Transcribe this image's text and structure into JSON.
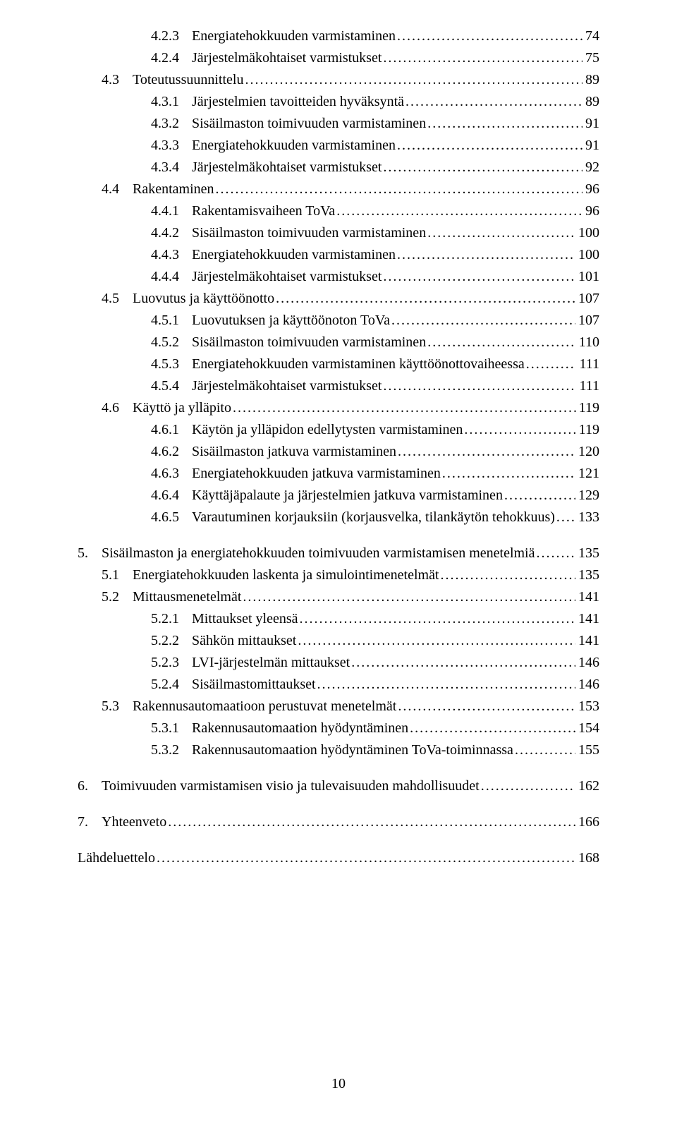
{
  "toc": {
    "entries": [
      {
        "level": 2,
        "num": "4.2.3",
        "title": "Energiatehokkuuden varmistaminen",
        "page": "74"
      },
      {
        "level": 2,
        "num": "4.2.4",
        "title": "Järjestelmäkohtaiset varmistukset",
        "page": "75"
      },
      {
        "level": 1,
        "num": "4.3",
        "title": "Toteutussuunnittelu",
        "page": "89"
      },
      {
        "level": 2,
        "num": "4.3.1",
        "title": "Järjestelmien tavoitteiden hyväksyntä",
        "page": "89"
      },
      {
        "level": 2,
        "num": "4.3.2",
        "title": "Sisäilmaston toimivuuden varmistaminen",
        "page": "91"
      },
      {
        "level": 2,
        "num": "4.3.3",
        "title": "Energiatehokkuuden varmistaminen",
        "page": "91"
      },
      {
        "level": 2,
        "num": "4.3.4",
        "title": "Järjestelmäkohtaiset varmistukset",
        "page": "92"
      },
      {
        "level": 1,
        "num": "4.4",
        "title": "Rakentaminen",
        "page": "96"
      },
      {
        "level": 2,
        "num": "4.4.1",
        "title": "Rakentamisvaiheen ToVa",
        "page": "96"
      },
      {
        "level": 2,
        "num": "4.4.2",
        "title": "Sisäilmaston toimivuuden varmistaminen",
        "page": "100"
      },
      {
        "level": 2,
        "num": "4.4.3",
        "title": "Energiatehokkuuden varmistaminen",
        "page": "100"
      },
      {
        "level": 2,
        "num": "4.4.4",
        "title": "Järjestelmäkohtaiset varmistukset",
        "page": "101"
      },
      {
        "level": 1,
        "num": "4.5",
        "title": "Luovutus ja käyttöönotto",
        "page": "107"
      },
      {
        "level": 2,
        "num": "4.5.1",
        "title": "Luovutuksen ja käyttöönoton ToVa",
        "page": "107"
      },
      {
        "level": 2,
        "num": "4.5.2",
        "title": "Sisäilmaston toimivuuden varmistaminen",
        "page": "110"
      },
      {
        "level": 2,
        "num": "4.5.3",
        "title": "Energiatehokkuuden varmistaminen käyttöönottovaiheessa",
        "page": "111"
      },
      {
        "level": 2,
        "num": "4.5.4",
        "title": "Järjestelmäkohtaiset varmistukset",
        "page": "111"
      },
      {
        "level": 1,
        "num": "4.6",
        "title": "Käyttö ja ylläpito",
        "page": "119"
      },
      {
        "level": 2,
        "num": "4.6.1",
        "title": "Käytön ja ylläpidon edellytysten varmistaminen",
        "page": "119"
      },
      {
        "level": 2,
        "num": "4.6.2",
        "title": "Sisäilmaston jatkuva varmistaminen",
        "page": "120"
      },
      {
        "level": 2,
        "num": "4.6.3",
        "title": "Energiatehokkuuden jatkuva varmistaminen",
        "page": "121"
      },
      {
        "level": 2,
        "num": "4.6.4",
        "title": "Käyttäjäpalaute ja järjestelmien jatkuva varmistaminen",
        "page": "129"
      },
      {
        "level": 2,
        "num": "4.6.5",
        "title": "Varautuminen korjauksiin (korjausvelka, tilankäytön tehokkuus)",
        "page": "133"
      },
      {
        "level": 0,
        "num": "5.",
        "title": "Sisäilmaston ja energiatehokkuuden toimivuuden varmistamisen menetelmiä",
        "page": "135"
      },
      {
        "level": 1,
        "num": "5.1",
        "title": "Energiatehokkuuden laskenta ja simulointimenetelmät",
        "page": "135"
      },
      {
        "level": 1,
        "num": "5.2",
        "title": "Mittausmenetelmät",
        "page": "141"
      },
      {
        "level": 2,
        "num": "5.2.1",
        "title": "Mittaukset yleensä",
        "page": "141"
      },
      {
        "level": 2,
        "num": "5.2.2",
        "title": "Sähkön mittaukset",
        "page": "141"
      },
      {
        "level": 2,
        "num": "5.2.3",
        "title": "LVI-järjestelmän mittaukset",
        "page": "146"
      },
      {
        "level": 2,
        "num": "5.2.4",
        "title": "Sisäilmastomittaukset",
        "page": "146"
      },
      {
        "level": 1,
        "num": "5.3",
        "title": "Rakennusautomaatioon perustuvat menetelmät",
        "page": "153"
      },
      {
        "level": 2,
        "num": "5.3.1",
        "title": "Rakennusautomaation hyödyntäminen",
        "page": "154"
      },
      {
        "level": 2,
        "num": "5.3.2",
        "title": "Rakennusautomaation hyödyntäminen ToVa-toiminnassa",
        "page": "155"
      },
      {
        "level": 0,
        "num": "6.",
        "title": "Toimivuuden varmistamisen visio ja tulevaisuuden mahdollisuudet",
        "page": "162"
      },
      {
        "level": 0,
        "num": "7.",
        "title": "Yhteenveto",
        "page": "166"
      },
      {
        "level": 0,
        "num": "",
        "title": "Lähdeluettelo",
        "page": "168"
      }
    ]
  },
  "footer": {
    "pageNumber": "10"
  },
  "style": {
    "pageWidthPx": 960,
    "pageHeightPx": 1596,
    "fontFamily": "Times New Roman",
    "fontSizePx": 20,
    "textColor": "#000000",
    "backgroundColor": "#ffffff",
    "indentsPx": {
      "lvl0": 0,
      "lvl1": 34,
      "lvl2": 104
    },
    "numColWidthsPx": {
      "lvl0": 34,
      "lvl1": 44,
      "lvl2": 58
    },
    "lvl0TopMarginPx": 20,
    "leaderChar": "."
  }
}
